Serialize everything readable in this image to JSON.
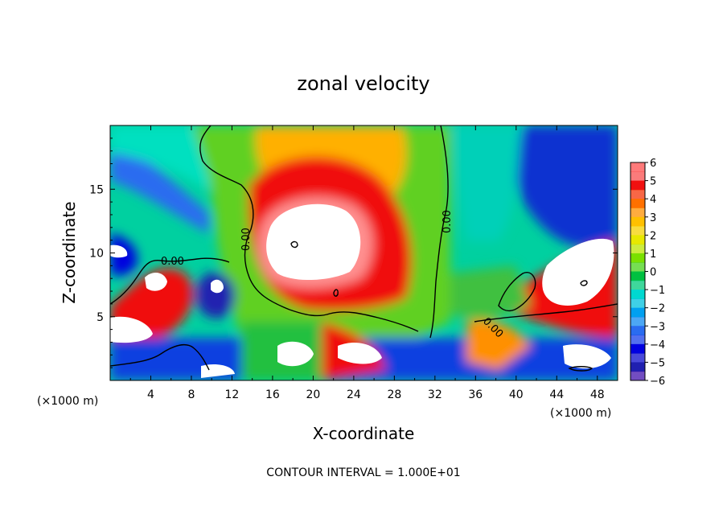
{
  "chart_data": {
    "type": "heatmap",
    "title": "zonal velocity",
    "xlabel": "X-coordinate",
    "ylabel": "Z-coordinate",
    "x_unit_label": "(×1000 m)",
    "x_unit_label_right": "(×1000 m)",
    "xlim": [
      0,
      50
    ],
    "ylim": [
      0,
      20
    ],
    "x_ticks": [
      "4",
      "8",
      "12",
      "16",
      "20",
      "24",
      "28",
      "32",
      "36",
      "40",
      "44",
      "48"
    ],
    "y_ticks": [
      "5",
      "10",
      "15"
    ],
    "colorbar_ticks": [
      "6",
      "5",
      "4",
      "3",
      "2",
      "1",
      "0",
      "−1",
      "−2",
      "−3",
      "−4",
      "−5",
      "−6"
    ],
    "colorbar_range": [
      -6,
      6
    ],
    "contour_labels": [
      "0.00",
      "0.00",
      "0.00",
      "0.00"
    ],
    "footer": "CONTOUR INTERVAL = 1.000E+01",
    "colors": {
      "v-6": "#7a00a8",
      "v-5": "#2020b0",
      "v-4": "#0000e0",
      "v-3": "#2a6cf0",
      "v-2": "#00a0f0",
      "v-1": "#00d8d0",
      "v0": "#00c040",
      "v1": "#7ae000",
      "v2": "#e8e800",
      "v3": "#ffc000",
      "v4": "#ff7000",
      "v5": "#f01010",
      "v6": "#ff7a7a",
      "saturated": "#ffffff"
    }
  }
}
